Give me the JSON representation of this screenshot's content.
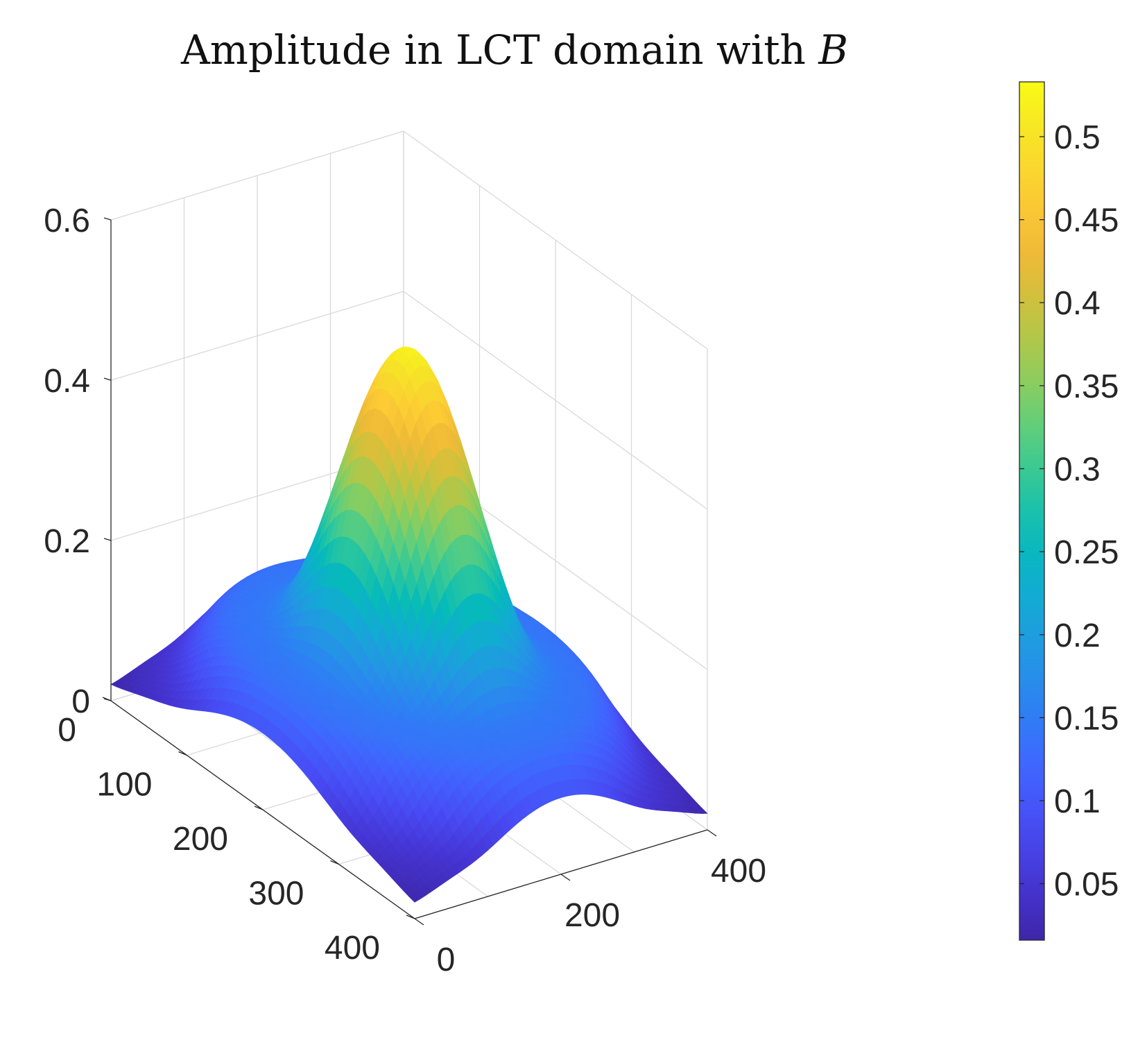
{
  "chart_data": {
    "type": "surface",
    "title": "Amplitude in LCT domain with ",
    "title_symbol": "B",
    "colormap": "parula",
    "grid": true,
    "x_axis": {
      "ticks": [
        0,
        200,
        400
      ],
      "tick_labels": [
        "0",
        "200",
        "400"
      ],
      "range": [
        0,
        400
      ]
    },
    "y_axis": {
      "ticks": [
        0,
        100,
        200,
        300,
        400
      ],
      "tick_labels": [
        "0",
        "100",
        "200",
        "300",
        "400"
      ],
      "range": [
        0,
        400
      ]
    },
    "z_axis": {
      "ticks": [
        0,
        0.2,
        0.4,
        0.6
      ],
      "tick_labels": [
        "0",
        "0.2",
        "0.4",
        "0.6"
      ],
      "range": [
        0,
        0.6
      ]
    },
    "colorbar": {
      "location": "right",
      "range": [
        0.016,
        0.533
      ],
      "ticks": [
        0.05,
        0.1,
        0.15,
        0.2,
        0.25,
        0.3,
        0.35,
        0.4,
        0.45,
        0.5
      ],
      "tick_labels": [
        "0.05",
        "0.1",
        "0.15",
        "0.2",
        "0.25",
        "0.3",
        "0.35",
        "0.4",
        "0.45",
        "0.5"
      ]
    },
    "surface": {
      "description": "central Gaussian peak with a ring-shaped lower lobe around it",
      "peak_value": 0.52,
      "peak_center": [
        200,
        200
      ],
      "min_value": 0.016,
      "ring_value": 0.11
    }
  }
}
